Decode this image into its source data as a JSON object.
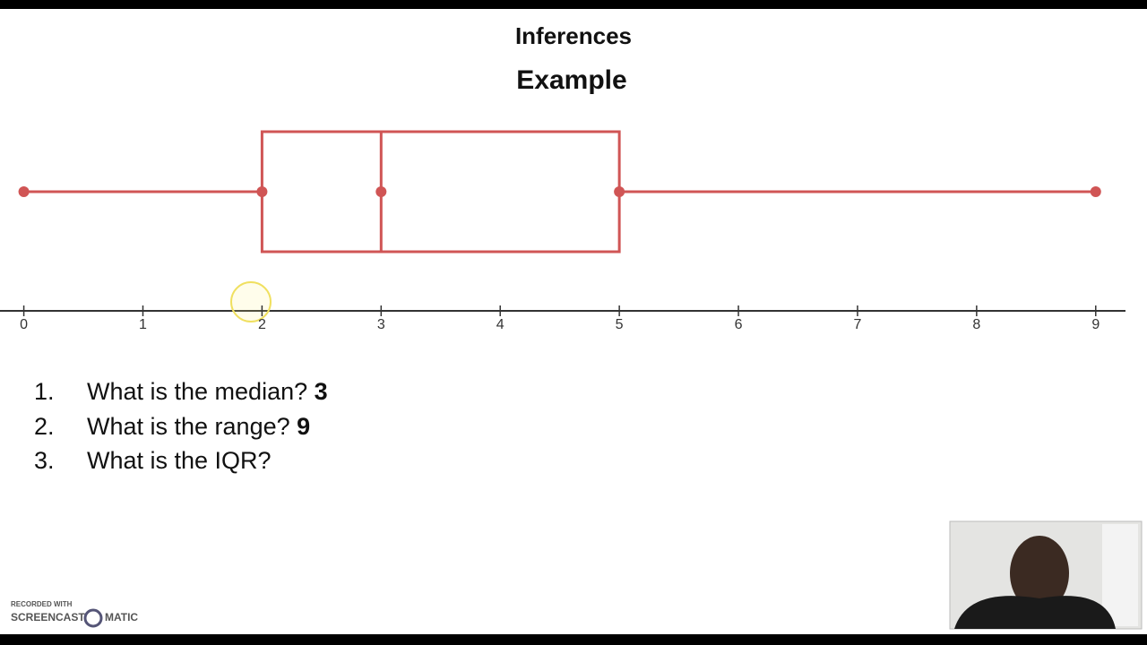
{
  "chart_data": {
    "type": "box",
    "title": "Inferences",
    "subtitle": "Example",
    "min": 0,
    "q1": 2,
    "median": 3,
    "q3": 5,
    "max": 9,
    "color": "#d05555",
    "xlim": [
      -0.2,
      9.25
    ],
    "xticks": [
      0,
      1,
      2,
      3,
      4,
      5,
      6,
      7,
      8,
      9
    ]
  },
  "questions": [
    {
      "number": "1.",
      "text": "What is the median?",
      "answer": "3"
    },
    {
      "number": "2.",
      "text": "What is the range?",
      "answer": "9"
    },
    {
      "number": "3.",
      "text": "What is the IQR?"
    }
  ],
  "watermark": {
    "line1": "RECORDED WITH",
    "line2": "SCREENCAST",
    "line3": "MATIC"
  }
}
